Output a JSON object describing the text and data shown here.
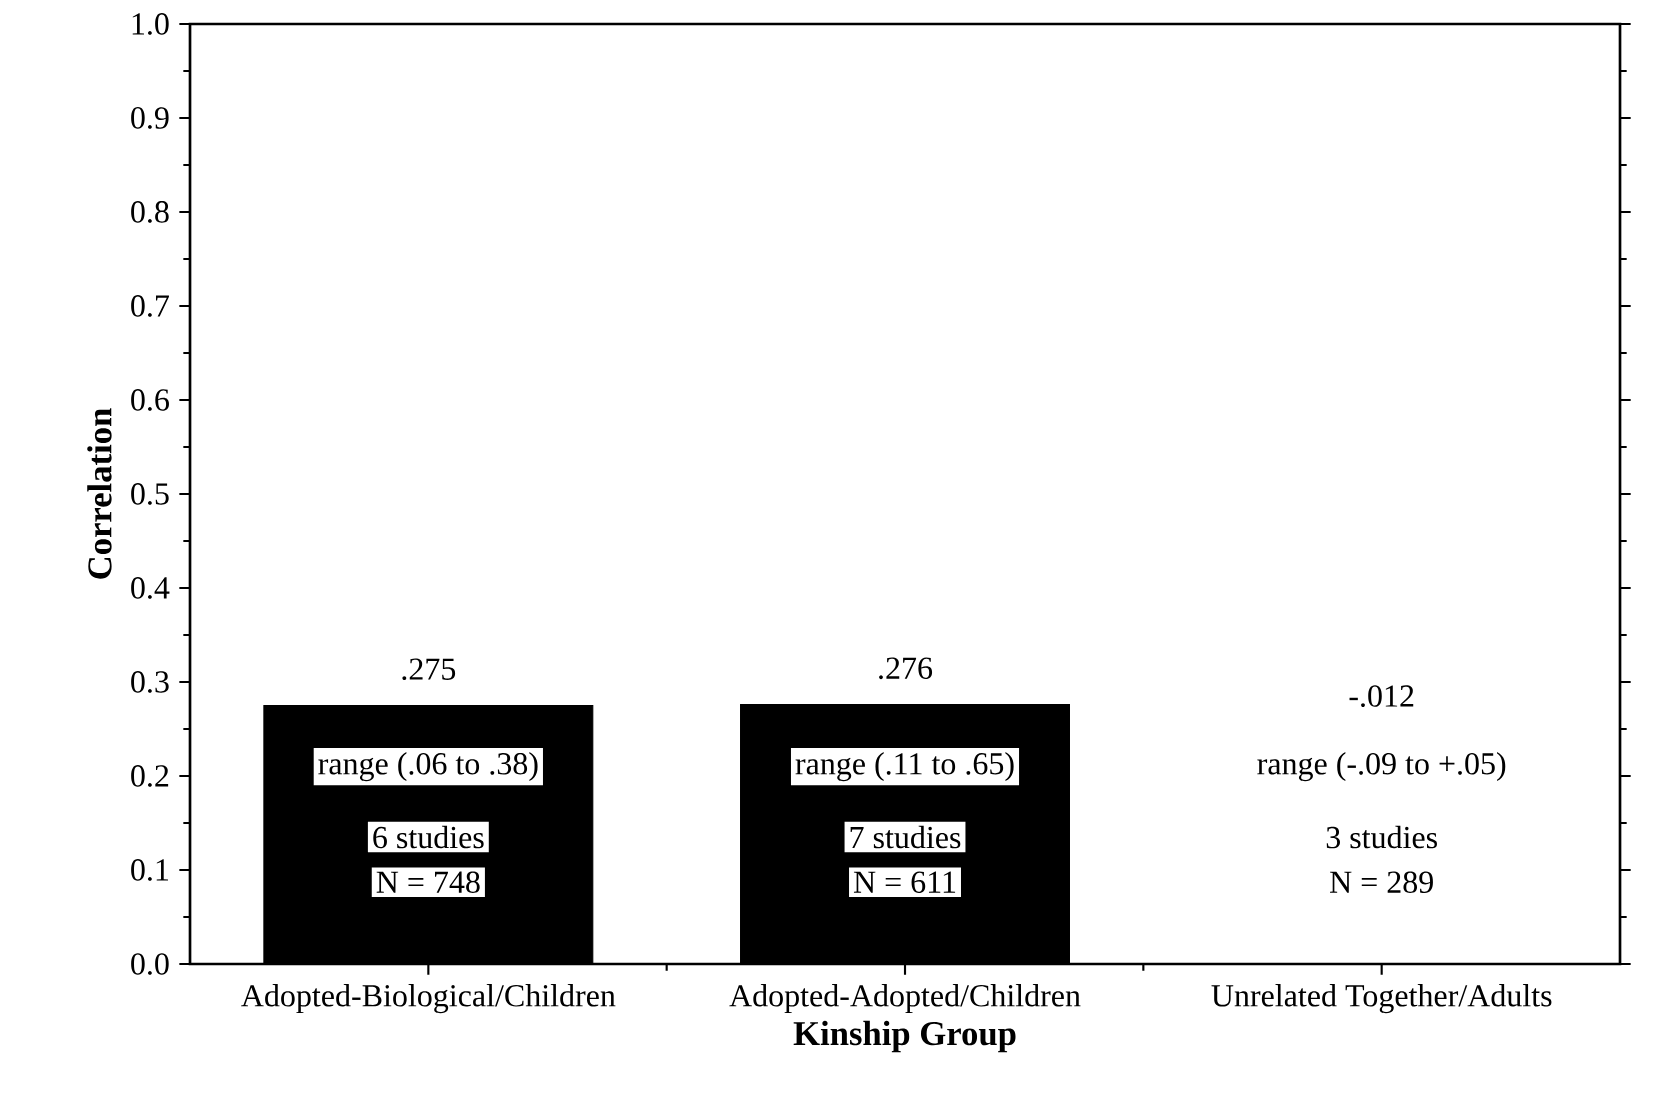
{
  "chart_data": {
    "type": "bar",
    "xlabel": "Kinship Group",
    "ylabel": "Correlation",
    "categories": [
      "Adopted-Biological/Children",
      "Adopted-Adopted/Children",
      "Unrelated Together/Adults"
    ],
    "values": [
      0.275,
      0.276,
      null
    ],
    "value_labels": [
      ".275",
      ".276",
      null
    ],
    "color": "#000000",
    "ylim": [
      0,
      1
    ],
    "yticks": [
      {
        "value": 0,
        "label": "0.0"
      },
      0.1,
      0.2,
      0.3,
      0.4,
      0.5,
      0.6,
      0.7,
      0.8,
      0.9,
      {
        "value": 1,
        "label": "1.0"
      }
    ],
    "annotations": [
      "range (.06 to .38)",
      "6 studies",
      "N = 748",
      "range (.11 to .65)",
      "7 studies",
      "N = 611",
      "-.012",
      "range (-.09 to +.05)",
      "3 studies",
      "N = 289"
    ]
  }
}
